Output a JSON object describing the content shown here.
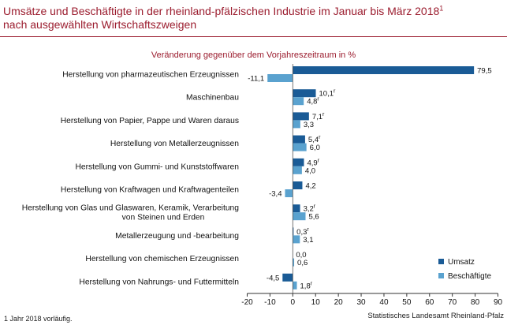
{
  "header": {
    "title": "Umsätze und Beschäftigte in der rheinland-pfälzischen Industrie im Januar bis März 2018",
    "title_sup": "1",
    "title_line2": "nach ausgewählten Wirtschaftszweigen"
  },
  "footer": {
    "footnote": "1 Jahr 2018 vorläufig.",
    "source": "Statistisches Landesamt Rheinland-Pfalz"
  },
  "colors": {
    "umsatz": "#1a5b96",
    "beschaeftigte": "#5aa2cf",
    "accent": "#9b1c2e"
  },
  "chart_data": {
    "type": "bar",
    "orientation": "horizontal",
    "title": "Veränderung gegenüber dem Vorjahreszeitraum in %",
    "categories": [
      [
        "Herstellung von pharmazeutischen Erzeugnissen"
      ],
      [
        "Maschinenbau"
      ],
      [
        "Herstellung von Papier, Pappe und Waren daraus"
      ],
      [
        "Herstellung von Metallerzeugnissen"
      ],
      [
        "Herstellung von Gummi- und Kunststoffwaren"
      ],
      [
        "Herstellung von Kraftwagen und Kraftwagenteilen"
      ],
      [
        "Herstellung von Glas und Glaswaren, Keramik, Verarbeitung",
        "von Steinen und Erden"
      ],
      [
        "Metallerzeugung und -bearbeitung"
      ],
      [
        "Herstellung von chemischen Erzeugnissen"
      ],
      [
        "Herstellung von Nahrungs- und Futtermitteln"
      ]
    ],
    "series": [
      {
        "name": "Umsatz",
        "values": [
          79.5,
          10.1,
          7.1,
          5.4,
          4.9,
          4.2,
          3.2,
          0.3,
          0.0,
          -4.5
        ],
        "labels": [
          "79,5",
          "10,1",
          "7,1",
          "5,4",
          "4,9",
          "4,2",
          "3,2",
          "0,3",
          "0,0",
          "-4,5"
        ],
        "flags": [
          "",
          "r",
          "r",
          "r",
          "r",
          "",
          "r",
          "r",
          "",
          ""
        ]
      },
      {
        "name": "Beschäftigte",
        "values": [
          -11.1,
          4.8,
          3.3,
          6.0,
          4.0,
          -3.4,
          5.6,
          3.1,
          0.6,
          1.8
        ],
        "labels": [
          "-11,1",
          "4,8",
          "3,3",
          "6,0",
          "4,0",
          "-3,4",
          "5,6",
          "3,1",
          "0,6",
          "1,8"
        ],
        "flags": [
          "",
          "r",
          "",
          "",
          "",
          "",
          "",
          "",
          "",
          "r"
        ]
      }
    ],
    "xlim": [
      -20,
      90
    ],
    "xticks": [
      "-20",
      "-10",
      "0",
      "10",
      "20",
      "30",
      "40",
      "50",
      "60",
      "70",
      "80",
      "90"
    ],
    "xtick_values": [
      -20,
      -10,
      0,
      10,
      20,
      30,
      40,
      50,
      60,
      70,
      80,
      90
    ],
    "grid": false,
    "legend": "bottom-right"
  }
}
